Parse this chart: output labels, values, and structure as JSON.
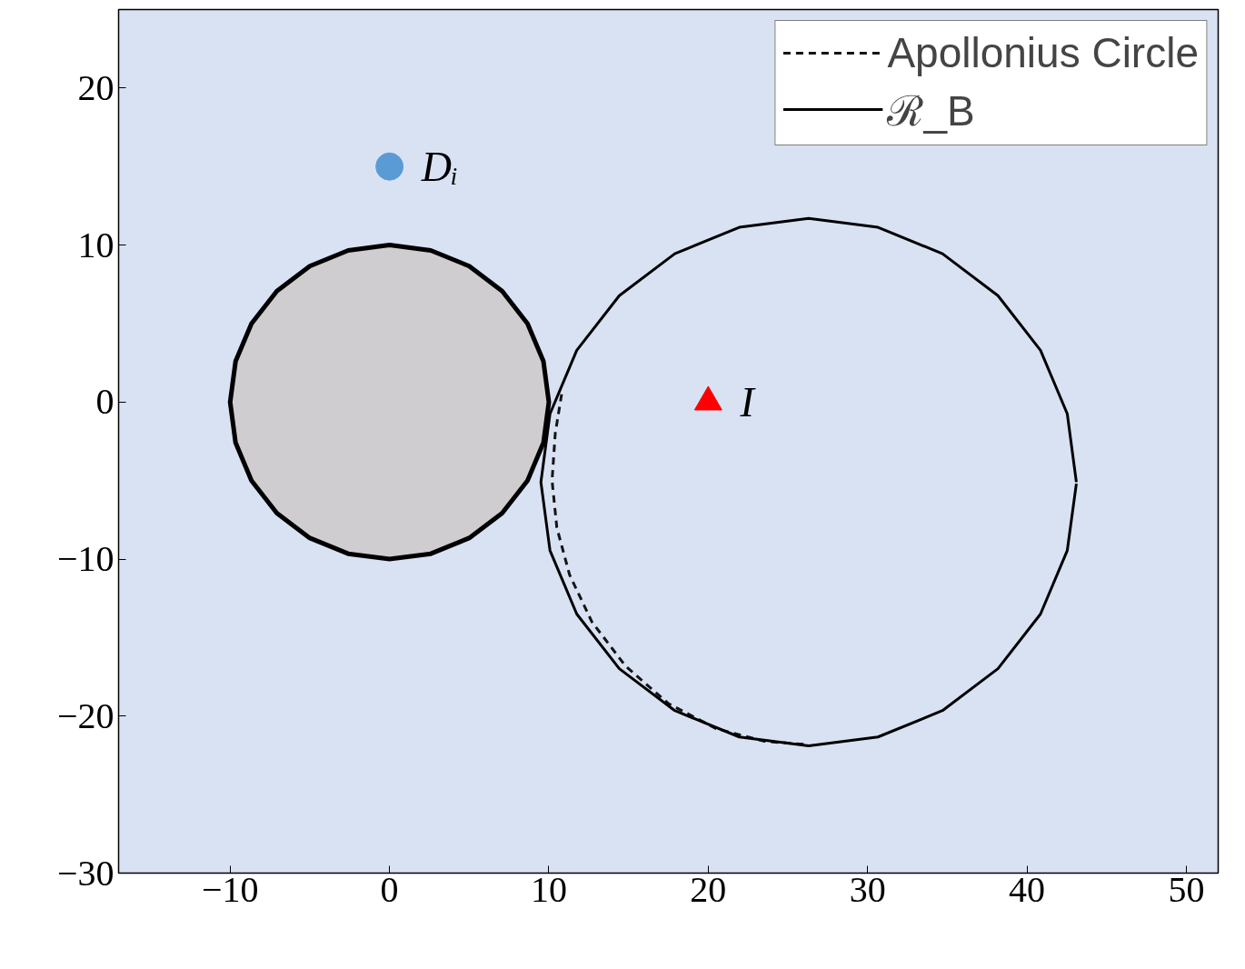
{
  "chart_data": {
    "type": "line",
    "xlim": [
      -17,
      52
    ],
    "ylim": [
      -30,
      25
    ],
    "xticks": [
      -10,
      0,
      10,
      20,
      30,
      40,
      50
    ],
    "yticks": [
      -30,
      -20,
      -10,
      0,
      10,
      20
    ],
    "grid": false,
    "legend": "top right",
    "annotations": [
      {
        "text": "Dᵢ",
        "x": 0,
        "y": 15
      },
      {
        "text": "I",
        "x": 20,
        "y": 0
      }
    ],
    "series": [
      {
        "type": "area",
        "color": "#cfcdcf",
        "x": [
          10,
          9.66,
          8.66,
          7.07,
          5,
          2.59,
          0,
          -2.59,
          -5,
          -7.07,
          -8.66,
          -9.66,
          -10,
          -9.66,
          -8.66,
          -7.07,
          -5,
          -2.59,
          0,
          2.59,
          5,
          7.07,
          8.66,
          9.66,
          10
        ],
        "values": [
          0,
          2.59,
          5,
          7.07,
          8.66,
          9.66,
          10,
          9.66,
          8.66,
          7.07,
          5,
          2.59,
          0,
          -2.59,
          -5,
          -7.07,
          -8.66,
          -9.66,
          -10,
          -9.66,
          -8.66,
          -7.07,
          -5,
          -2.59,
          0
        ]
      },
      {
        "name": "Apollonius Circle",
        "color": "#141414",
        "line_style": "dashed",
        "x": [
          10.8,
          10.4,
          10.2,
          10.5,
          11.3,
          12.7,
          14.8,
          17.5,
          20.5,
          23.5,
          26
        ],
        "values": [
          0.5,
          -2,
          -5,
          -8,
          -11,
          -14,
          -16.8,
          -19.2,
          -20.8,
          -21.6,
          -21.8
        ]
      },
      {
        "name": "ℛ_B",
        "color": "#000000",
        "line_style": "solid",
        "x": [
          43.1,
          42.53,
          40.85,
          38.18,
          34.7,
          30.65,
          26.3,
          21.95,
          17.9,
          14.42,
          11.75,
          10.07,
          9.5,
          10.07,
          11.75,
          14.42,
          17.9,
          21.95,
          26.3,
          30.65,
          34.7,
          38.18,
          40.85,
          42.53,
          43.1
        ],
        "values": [
          -5.1,
          -0.75,
          3.3,
          6.78,
          9.45,
          11.13,
          11.7,
          11.13,
          9.45,
          6.78,
          3.3,
          -0.75,
          -5.1,
          -9.45,
          -13.5,
          -16.98,
          -19.65,
          -21.33,
          -21.9,
          -21.33,
          -19.65,
          -16.98,
          -13.5,
          -9.45,
          -5.2
        ]
      },
      {
        "type": "scatter",
        "marker": "circle",
        "color": "#5b9bd5",
        "x": [
          0
        ],
        "values": [
          15
        ]
      },
      {
        "type": "scatter",
        "marker": "triangle",
        "color": "#ff0000",
        "x": [
          20
        ],
        "values": [
          0
        ]
      }
    ]
  }
}
